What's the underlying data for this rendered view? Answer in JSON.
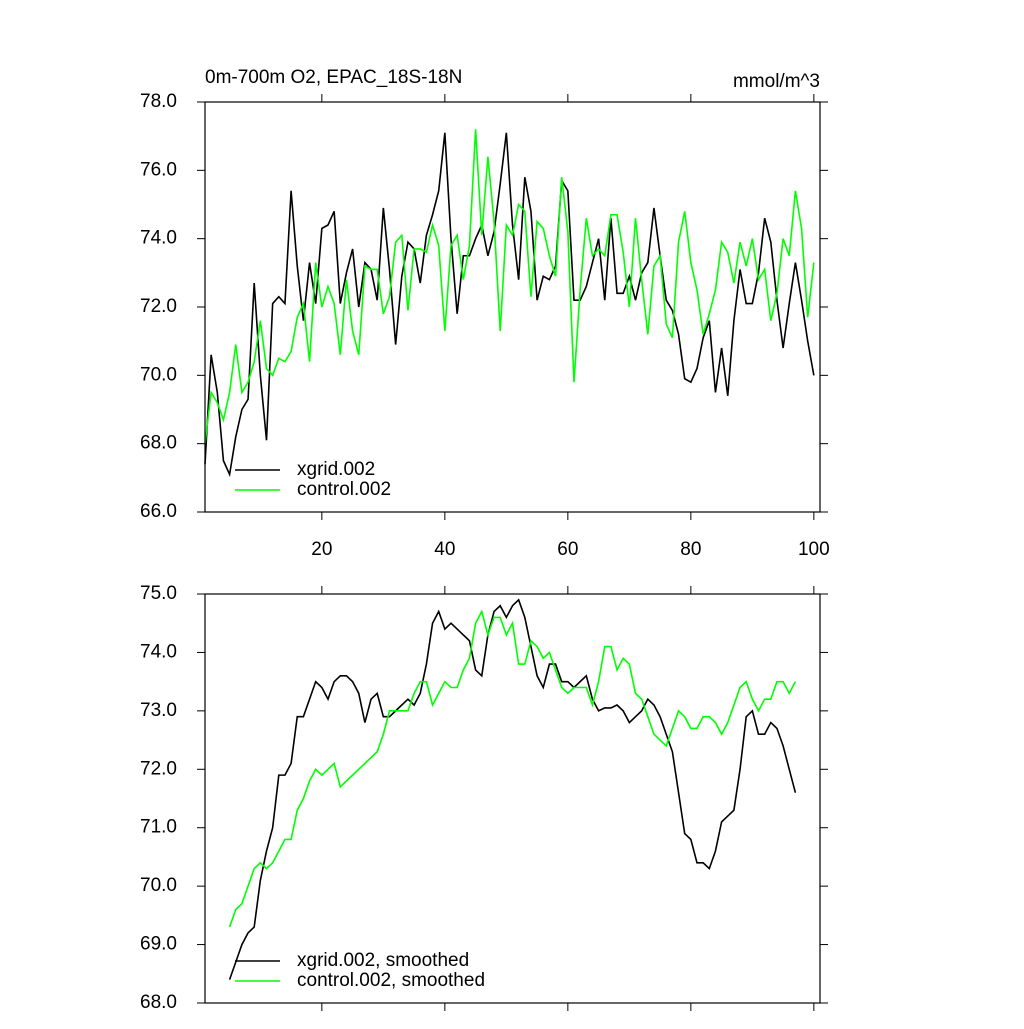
{
  "chart_data": [
    {
      "type": "line",
      "title": "0m-700m O2, EPAC_18S-18N",
      "units_label": "mmol/m^3",
      "x": [
        1,
        2,
        3,
        4,
        5,
        6,
        7,
        8,
        9,
        10,
        11,
        12,
        13,
        14,
        15,
        16,
        17,
        18,
        19,
        20,
        21,
        22,
        23,
        24,
        25,
        26,
        27,
        28,
        29,
        30,
        31,
        32,
        33,
        34,
        35,
        36,
        37,
        38,
        39,
        40,
        41,
        42,
        43,
        44,
        45,
        46,
        47,
        48,
        49,
        50,
        51,
        52,
        53,
        54,
        55,
        56,
        57,
        58,
        59,
        60,
        61,
        62,
        63,
        64,
        65,
        66,
        67,
        68,
        69,
        70,
        71,
        72,
        73,
        74,
        75,
        76,
        77,
        78,
        79,
        80,
        81,
        82,
        83,
        84,
        85,
        86,
        87,
        88,
        89,
        90,
        91,
        92,
        93,
        94,
        95,
        96,
        97,
        98,
        99,
        100
      ],
      "series": [
        {
          "name": "xgrid.002",
          "color": "#000000",
          "values": [
            67.4,
            70.6,
            69.5,
            67.5,
            67.1,
            68.2,
            69.0,
            69.3,
            72.7,
            70.0,
            68.1,
            72.1,
            72.3,
            72.1,
            75.4,
            73.2,
            71.6,
            73.3,
            72.1,
            74.3,
            74.4,
            74.8,
            72.1,
            73.0,
            73.7,
            72.0,
            73.3,
            73.1,
            72.2,
            74.9,
            73.1,
            70.9,
            72.9,
            73.9,
            73.7,
            72.7,
            74.1,
            74.7,
            75.4,
            77.1,
            74.0,
            71.8,
            73.5,
            73.5,
            74.0,
            74.4,
            73.5,
            74.2,
            75.6,
            77.1,
            74.4,
            72.8,
            75.8,
            74.8,
            72.2,
            72.9,
            72.8,
            73.2,
            75.7,
            75.4,
            72.2,
            72.2,
            72.6,
            73.3,
            74.0,
            72.2,
            74.6,
            72.4,
            72.4,
            72.9,
            72.2,
            73.0,
            73.3,
            74.9,
            73.5,
            72.2,
            71.9,
            71.2,
            69.9,
            69.8,
            70.2,
            71.1,
            71.6,
            69.5,
            70.8,
            69.4,
            71.6,
            73.1,
            72.1,
            72.1,
            73.0,
            74.6,
            73.9,
            72.2,
            70.8,
            72.1,
            73.3,
            72.2,
            71.0,
            70.0
          ]
        },
        {
          "name": "control.002",
          "color": "#00ff00",
          "values": [
            68.0,
            69.5,
            69.2,
            68.7,
            69.5,
            70.9,
            69.5,
            69.8,
            70.4,
            71.6,
            70.2,
            70.0,
            70.5,
            70.4,
            70.7,
            71.7,
            72.1,
            70.4,
            73.3,
            72.0,
            72.6,
            72.1,
            70.6,
            72.8,
            71.3,
            70.6,
            73.2,
            73.1,
            73.1,
            71.8,
            72.3,
            73.9,
            74.1,
            71.9,
            73.7,
            73.7,
            73.6,
            74.4,
            73.8,
            71.3,
            73.8,
            74.1,
            72.8,
            73.8,
            77.2,
            74.1,
            76.4,
            74.5,
            71.3,
            74.4,
            74.1,
            75.0,
            74.8,
            72.3,
            74.5,
            74.3,
            73.5,
            72.9,
            75.8,
            74.2,
            69.8,
            72.5,
            74.6,
            73.5,
            73.7,
            73.5,
            74.7,
            74.7,
            73.6,
            72.0,
            74.6,
            72.8,
            71.2,
            73.2,
            73.5,
            71.5,
            71.1,
            73.9,
            74.8,
            73.3,
            72.5,
            71.2,
            71.8,
            72.5,
            73.9,
            73.6,
            72.7,
            73.9,
            73.2,
            74.0,
            72.8,
            73.1,
            71.6,
            72.4,
            74.0,
            73.5,
            75.4,
            74.3,
            71.7,
            73.3
          ]
        }
      ],
      "xlim": [
        1,
        101
      ],
      "xticks": [
        20,
        40,
        60,
        80,
        100
      ],
      "show_xtick_labels": true,
      "ylim": [
        66,
        78
      ],
      "yticks": [
        {
          "value": 66,
          "label": "66.0"
        },
        {
          "value": 68,
          "label": "68.0"
        },
        {
          "value": 70,
          "label": "70.0"
        },
        {
          "value": 72,
          "label": "72.0"
        },
        {
          "value": 74,
          "label": "74.0"
        },
        {
          "value": 76,
          "label": "76.0"
        },
        {
          "value": 78,
          "label": "78.0"
        }
      ],
      "legend": "lower left"
    },
    {
      "type": "line",
      "x": [
        5,
        6,
        7,
        8,
        9,
        10,
        11,
        12,
        13,
        14,
        15,
        16,
        17,
        18,
        19,
        20,
        21,
        22,
        23,
        24,
        25,
        26,
        27,
        28,
        29,
        30,
        31,
        32,
        33,
        34,
        35,
        36,
        37,
        38,
        39,
        40,
        41,
        42,
        43,
        44,
        45,
        46,
        47,
        48,
        49,
        50,
        51,
        52,
        53,
        54,
        55,
        56,
        57,
        58,
        59,
        60,
        61,
        62,
        63,
        64,
        65,
        66,
        67,
        68,
        69,
        70,
        71,
        72,
        73,
        74,
        75,
        76,
        77,
        78,
        79,
        80,
        81,
        82,
        83,
        84,
        85,
        86,
        87,
        88,
        89,
        90,
        91,
        92,
        93,
        94,
        95,
        96,
        97
      ],
      "series": [
        {
          "name": "xgrid.002, smoothed",
          "color": "#000000",
          "values": [
            68.4,
            68.7,
            69.0,
            69.2,
            69.3,
            70.1,
            70.6,
            71.0,
            71.9,
            71.9,
            72.1,
            72.9,
            72.9,
            73.2,
            73.5,
            73.4,
            73.2,
            73.5,
            73.6,
            73.6,
            73.5,
            73.3,
            72.8,
            73.2,
            73.3,
            72.9,
            72.9,
            73.0,
            73.1,
            73.2,
            73.1,
            73.3,
            73.8,
            74.5,
            74.7,
            74.4,
            74.5,
            74.4,
            74.3,
            74.2,
            73.7,
            73.6,
            74.3,
            74.7,
            74.8,
            74.6,
            74.8,
            74.9,
            74.6,
            74.1,
            73.6,
            73.4,
            73.8,
            73.8,
            73.5,
            73.5,
            73.4,
            73.5,
            73.6,
            73.2,
            73.0,
            73.05,
            73.05,
            73.1,
            73.0,
            72.8,
            72.9,
            73.0,
            73.2,
            73.1,
            72.9,
            72.6,
            72.3,
            71.6,
            70.9,
            70.8,
            70.4,
            70.4,
            70.3,
            70.6,
            71.1,
            71.2,
            71.3,
            72.0,
            72.9,
            73.0,
            72.6,
            72.6,
            72.8,
            72.7,
            72.4,
            72.0,
            71.6
          ]
        },
        {
          "name": "control.002, smoothed",
          "color": "#00ff00",
          "values": [
            69.3,
            69.6,
            69.7,
            70.0,
            70.3,
            70.4,
            70.3,
            70.4,
            70.6,
            70.8,
            70.8,
            71.3,
            71.5,
            71.8,
            72.0,
            71.9,
            72.0,
            72.1,
            71.7,
            71.8,
            71.9,
            72.0,
            72.1,
            72.2,
            72.3,
            72.6,
            73.0,
            73.0,
            73.0,
            73.0,
            73.3,
            73.5,
            73.5,
            73.1,
            73.3,
            73.5,
            73.4,
            73.4,
            73.7,
            73.9,
            74.5,
            74.7,
            74.3,
            74.6,
            74.6,
            74.3,
            74.5,
            73.8,
            73.8,
            74.2,
            74.1,
            73.9,
            74.0,
            73.7,
            73.4,
            73.3,
            73.4,
            73.4,
            73.4,
            73.1,
            73.5,
            74.1,
            74.1,
            73.7,
            73.9,
            73.8,
            73.3,
            73.2,
            72.9,
            72.6,
            72.5,
            72.4,
            72.7,
            73.0,
            72.9,
            72.7,
            72.7,
            72.9,
            72.9,
            72.8,
            72.6,
            72.8,
            73.1,
            73.4,
            73.5,
            73.2,
            73.0,
            73.2,
            73.2,
            73.5,
            73.5,
            73.3,
            73.5
          ]
        }
      ],
      "xlim": [
        1,
        101
      ],
      "xticks": [
        20,
        40,
        60,
        80,
        100
      ],
      "show_xtick_labels": false,
      "ylim": [
        68,
        75
      ],
      "yticks": [
        {
          "value": 68,
          "label": "68.0"
        },
        {
          "value": 69,
          "label": "69.0"
        },
        {
          "value": 70,
          "label": "70.0"
        },
        {
          "value": 71,
          "label": "71.0"
        },
        {
          "value": 72,
          "label": "72.0"
        },
        {
          "value": 73,
          "label": "73.0"
        },
        {
          "value": 74,
          "label": "74.0"
        },
        {
          "value": 75,
          "label": "75.0"
        }
      ],
      "legend": "lower left"
    }
  ]
}
